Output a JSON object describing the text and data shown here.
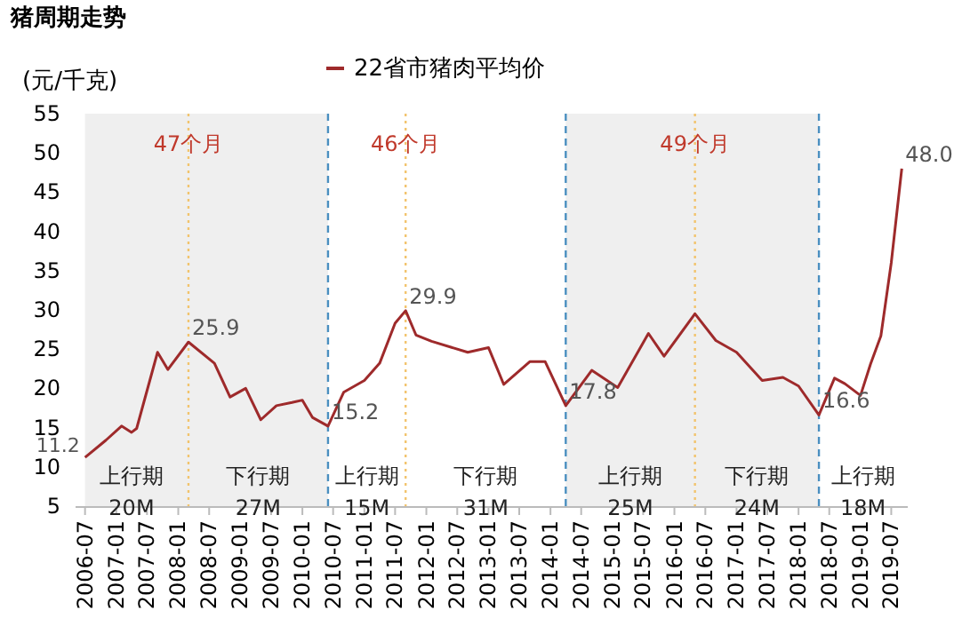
{
  "chart_data": {
    "type": "line",
    "title": "猪周期走势",
    "ylabel": "(元/千克)",
    "x": [
      "2006-07",
      "2006-11",
      "2007-02",
      "2007-04",
      "2007-05",
      "2007-09",
      "2007-11",
      "2008-03",
      "2008-08",
      "2008-11",
      "2009-02",
      "2009-05",
      "2009-08",
      "2009-11",
      "2010-01",
      "2010-03",
      "2010-06",
      "2010-09",
      "2011-01",
      "2011-04",
      "2011-07",
      "2011-09",
      "2011-11",
      "2012-02",
      "2012-09",
      "2013-01",
      "2013-04",
      "2013-09",
      "2013-12",
      "2014-04",
      "2014-09",
      "2015-02",
      "2015-08",
      "2015-11",
      "2016-05",
      "2016-09",
      "2017-01",
      "2017-06",
      "2017-10",
      "2018-01",
      "2018-05",
      "2018-08",
      "2018-10",
      "2019-01",
      "2019-03",
      "2019-05",
      "2019-07",
      "2019-09"
    ],
    "series": [
      {
        "name": "22省市猪肉平均价",
        "color": "#9e2a2b",
        "values": [
          11.2,
          13.4,
          15.2,
          14.4,
          14.9,
          24.6,
          22.4,
          25.9,
          23.2,
          18.9,
          20.0,
          16.0,
          17.8,
          18.2,
          18.5,
          16.3,
          15.2,
          19.5,
          21.0,
          23.2,
          28.3,
          29.9,
          26.8,
          26.0,
          24.6,
          25.2,
          20.5,
          23.4,
          23.4,
          17.8,
          22.3,
          20.1,
          27.0,
          24.1,
          29.5,
          26.1,
          24.6,
          21.0,
          21.4,
          20.3,
          16.6,
          21.3,
          20.6,
          19.1,
          23.1,
          26.7,
          36.0,
          48.0
        ],
        "value_labels": [
          "11.2",
          null,
          null,
          null,
          null,
          null,
          null,
          "25.9",
          null,
          null,
          null,
          null,
          null,
          null,
          null,
          null,
          "15.2",
          null,
          null,
          null,
          null,
          "29.9",
          null,
          null,
          null,
          null,
          null,
          null,
          null,
          "17.8",
          null,
          null,
          null,
          null,
          null,
          null,
          null,
          null,
          null,
          null,
          "16.6",
          null,
          null,
          null,
          null,
          null,
          null,
          "48.0"
        ]
      }
    ],
    "xlim": [
      "2006-05",
      "2019-10"
    ],
    "xticks": [
      "2006-07",
      "2007-01",
      "2007-07",
      "2008-01",
      "2008-07",
      "2009-01",
      "2009-07",
      "2010-01",
      "2010-07",
      "2011-01",
      "2011-07",
      "2012-01",
      "2012-07",
      "2013-01",
      "2013-07",
      "2014-01",
      "2014-07",
      "2015-01",
      "2015-07",
      "2016-01",
      "2016-07",
      "2017-01",
      "2017-07",
      "2018-01",
      "2018-07",
      "2019-01",
      "2019-07"
    ],
    "ylim": [
      5,
      55
    ],
    "yticks": [
      5,
      10,
      15,
      20,
      25,
      30,
      35,
      40,
      45,
      50,
      55
    ],
    "grid": false,
    "legend": "top",
    "line_style": "solid",
    "marker": "none",
    "bands": [
      {
        "axis": "x",
        "from": "2006-07",
        "to": "2010-06",
        "color": "#efefef"
      },
      {
        "axis": "x",
        "from": "2014-04",
        "to": "2018-05",
        "color": "#efefef"
      }
    ],
    "ref_lines": [
      {
        "axis": "x",
        "value": "2010-06",
        "color": "#4a8fc0",
        "line_style": "dashed"
      },
      {
        "axis": "x",
        "value": "2014-04",
        "color": "#4a8fc0",
        "line_style": "dashed"
      },
      {
        "axis": "x",
        "value": "2018-05",
        "color": "#4a8fc0",
        "line_style": "dashed"
      },
      {
        "axis": "x",
        "value": "2008-03",
        "color": "#f2c46d",
        "line_style": "dotted",
        "label": "47个月"
      },
      {
        "axis": "x",
        "value": "2011-09",
        "color": "#f2c46d",
        "line_style": "dotted",
        "label": "46个月"
      },
      {
        "axis": "x",
        "value": "2016-05",
        "color": "#f2c46d",
        "line_style": "dotted",
        "label": "49个月"
      }
    ],
    "annotations": [
      "上行期\n20M",
      "下行期\n27M",
      "上行期\n15M",
      "下行期\n31M",
      "上行期\n25M",
      "下行期\n24M",
      "上行期\n18M"
    ]
  }
}
